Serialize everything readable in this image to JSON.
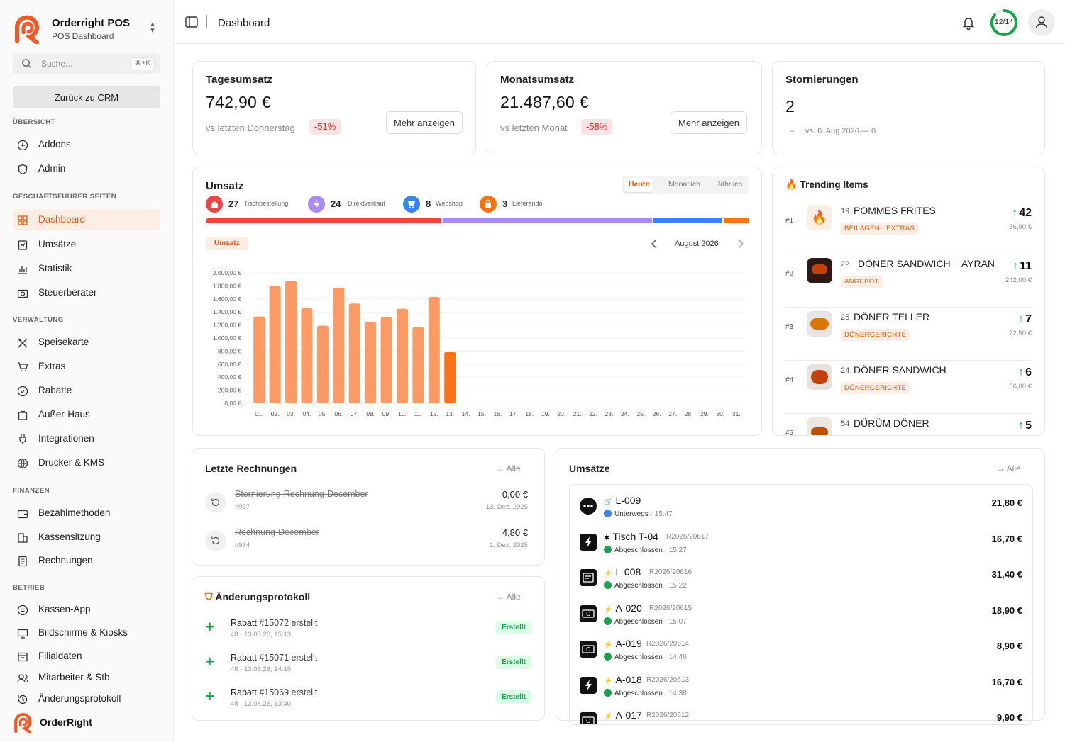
{
  "colors": {
    "accent": "#ea580c",
    "bar": "#fb9a64",
    "bar_current": "#f97316",
    "positive": "#16a34a",
    "negative": "#dc2626"
  },
  "sidebar": {
    "brand_title": "Orderright POS",
    "brand_subtitle": "POS Dashboard",
    "search_placeholder": "Suche...",
    "search_shortcut": "⌘+K",
    "crm_button": "Zurück zu CRM",
    "sections": {
      "overview": "ÜBERSICHT",
      "manager": "GESCHÄFTSFÜHRER SEITEN",
      "admin": "VERWALTUNG",
      "finance": "FINANZEN",
      "operations": "BETRIEB"
    },
    "items": {
      "addons": "Addons",
      "admin": "Admin",
      "dashboard": "Dashboard",
      "umsaetze": "Umsätze",
      "statistik": "Statistik",
      "steuerberater": "Steuerberater",
      "speisekarte": "Speisekarte",
      "extras": "Extras",
      "rabatte": "Rabatte",
      "ausser_haus": "Außer-Haus",
      "integrationen": "Integrationen",
      "drucker": "Drucker & KMS",
      "bezahlmethoden": "Bezahlmethoden",
      "kassensitzung": "Kassensitzung",
      "rechnungen": "Rechnungen",
      "kassen_app": "Kassen-App",
      "bildschirme": "Bildschirme & Kiosks",
      "filialdaten": "Filialdaten",
      "mitarbeiter": "Mitarbeiter & Stb.",
      "aenderungsprotokoll": "Änderungsprotokoll"
    },
    "footer_brand": "OrderRight"
  },
  "header": {
    "title": "Dashboard",
    "progress_label": "12/14",
    "progress": 0.857
  },
  "kpis": {
    "daily": {
      "title": "Tagesumsatz",
      "value": "742,90 €",
      "compare": "vs letzten Donnerstag",
      "change": "-51%",
      "button": "Mehr anzeigen"
    },
    "monthly": {
      "title": "Monatsumsatz",
      "value": "21.487,60 €",
      "compare": "vs letzten Monat",
      "change": "-58%",
      "button": "Mehr anzeigen"
    },
    "cancellations": {
      "title": "Stornierungen",
      "value": "2",
      "dash": "–",
      "compare": "vs. 6. Aug 2026 — 0"
    }
  },
  "revenue": {
    "title": "Umsatz",
    "tabs": [
      "Heute",
      "Monatlich",
      "Jährlich"
    ],
    "active_tab": "Heute",
    "channels": [
      {
        "count": "27",
        "label": "Tischbestellung",
        "color": "#ef4444",
        "share": 27
      },
      {
        "count": "24",
        "label": "Direktverkauf",
        "color": "#a78bfa",
        "share": 24
      },
      {
        "count": "8",
        "label": "Webshop",
        "color": "#3b82f6",
        "share": 8
      },
      {
        "count": "3",
        "label": "Lieferando",
        "color": "#f97316",
        "share": 3
      }
    ],
    "series_badge": "Umsatz",
    "month": "August 2026"
  },
  "chart_data": {
    "type": "bar",
    "categories": [
      "01.",
      "02.",
      "03.",
      "04.",
      "05.",
      "06.",
      "07.",
      "08.",
      "09.",
      "10.",
      "11.",
      "12.",
      "13.",
      "14.",
      "15.",
      "16.",
      "17.",
      "18.",
      "19.",
      "20.",
      "21.",
      "22.",
      "23.",
      "24.",
      "25.",
      "26.",
      "27.",
      "28.",
      "29.",
      "30.",
      "31."
    ],
    "values": [
      1330,
      1800,
      1880,
      1460,
      1190,
      1770,
      1530,
      1250,
      1320,
      1450,
      1170,
      1630,
      790,
      null,
      null,
      null,
      null,
      null,
      null,
      null,
      null,
      null,
      null,
      null,
      null,
      null,
      null,
      null,
      null,
      null,
      null
    ],
    "highlight_index": 12,
    "ylim": [
      0,
      2000
    ],
    "yticks": [
      "0,00 €",
      "200,00 €",
      "400,00 €",
      "600,00 €",
      "800,00 €",
      "1.000,00 €",
      "1.200,00 €",
      "1.400,00 €",
      "1.600,00 €",
      "1.800,00 €",
      "2.000,00 €"
    ],
    "grid": true
  },
  "trending": {
    "title": "Trending Items",
    "items": [
      {
        "rank": "#1",
        "count": "19",
        "name": "POMMES FRITES",
        "tag": "BEILAGEN · EXTRAS",
        "delta": "42",
        "price": "36,90 €",
        "img": "fire"
      },
      {
        "rank": "#2",
        "count": "22",
        "name": "DÖNER SANDWICH + AYRAN",
        "tag": "ANGEBOT",
        "delta": "11",
        "price": "242,00 €",
        "img": "food-dark"
      },
      {
        "rank": "#3",
        "count": "25",
        "name": "DÖNER TELLER",
        "tag": "DÖNERGERICHTE",
        "delta": "7",
        "price": "72,50 €",
        "img": "food-plate"
      },
      {
        "rank": "#4",
        "count": "24",
        "name": "DÖNER SANDWICH",
        "tag": "DÖNERGERICHTE",
        "delta": "6",
        "price": "36,00 €",
        "img": "food-sandwich"
      },
      {
        "rank": "#5",
        "count": "54",
        "name": "DÜRÜM DÖNER",
        "tag": "",
        "delta": "5",
        "price": "",
        "img": "food-wrap"
      }
    ]
  },
  "invoices": {
    "title": "Letzte Rechnungen",
    "all": "Alle",
    "items": [
      {
        "name": "Stornierung-Rechnung-December",
        "id": "#967",
        "amount": "0,00 €",
        "date": "13. Dez. 2025"
      },
      {
        "name": "Rechnung-December",
        "id": "#964",
        "amount": "4,80 €",
        "date": "1. Dez. 2025"
      }
    ]
  },
  "changelog": {
    "title": "Änderungsprotokoll",
    "all": "Alle",
    "items": [
      {
        "type": "Rabatt",
        "text": "#15072 erstellt",
        "user": "48",
        "time": "13.08.26, 15:13",
        "badge": "Erstellt"
      },
      {
        "type": "Rabatt",
        "text": "#15071 erstellt",
        "user": "48",
        "time": "13.08.26, 14:15",
        "badge": "Erstellt"
      },
      {
        "type": "Rabatt",
        "text": "#15069 erstellt",
        "user": "48",
        "time": "13.08.26, 13:40",
        "badge": "Erstellt"
      }
    ]
  },
  "orders": {
    "title": "Umsätze",
    "all": "Alle",
    "items": [
      {
        "type_icon": "cart",
        "id": "L-009",
        "ref": "",
        "status": "Unterwegs",
        "status_color": "#3b82f6",
        "time": "15:47",
        "amount": "21,80 €",
        "icon": "dots"
      },
      {
        "type_icon": "table",
        "id": "Tisch T-04",
        "ref": "R2026/20617",
        "status": "Abgeschlossen",
        "status_color": "#16a34a",
        "time": "15:27",
        "amount": "16,70 €",
        "icon": "bolt-app"
      },
      {
        "type_icon": "bolt",
        "id": "L-008",
        "ref": "R2026/20616",
        "status": "Abgeschlossen",
        "status_color": "#16a34a",
        "time": "15:22",
        "amount": "31,40 €",
        "icon": "delivery"
      },
      {
        "type_icon": "bolt",
        "id": "A-020",
        "ref": "R2026/20615",
        "status": "Abgeschlossen",
        "status_color": "#16a34a",
        "time": "15:07",
        "amount": "18,90 €",
        "icon": "cash"
      },
      {
        "type_icon": "bolt",
        "id": "A-019",
        "ref": "R2026/20614",
        "status": "Abgeschlossen",
        "status_color": "#16a34a",
        "time": "14:46",
        "amount": "8,90 €",
        "icon": "cash"
      },
      {
        "type_icon": "bolt",
        "id": "A-018",
        "ref": "R2026/20613",
        "status": "Abgeschlossen",
        "status_color": "#16a34a",
        "time": "14:38",
        "amount": "16,70 €",
        "icon": "bolt-app"
      },
      {
        "type_icon": "bolt",
        "id": "A-017",
        "ref": "R2026/20612",
        "status": "",
        "status_color": "#16a34a",
        "time": "",
        "amount": "9,90 €",
        "icon": "cash"
      }
    ]
  }
}
